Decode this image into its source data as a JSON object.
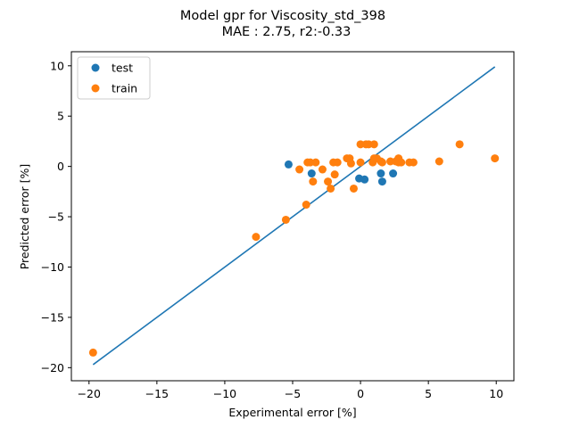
{
  "chart_data": {
    "type": "scatter",
    "title": "Model gpr for Viscosity_std_398",
    "subtitle": "MAE :  2.75, r2:-0.33",
    "xlabel": "Experimental error [%]",
    "ylabel": "Predicted error [%]",
    "xlim": [
      -21.3,
      11.3
    ],
    "ylim": [
      -21.3,
      11.4
    ],
    "xticks": [
      -20,
      -15,
      -10,
      -5,
      0,
      5,
      10
    ],
    "xtick_labels": [
      "−20",
      "−15",
      "−10",
      "−5",
      "0",
      "5",
      "10"
    ],
    "yticks": [
      -20,
      -15,
      -10,
      -5,
      0,
      5,
      10
    ],
    "ytick_labels": [
      "−20",
      "−15",
      "−10",
      "−5",
      "0",
      "5",
      "10"
    ],
    "grid": false,
    "legend_position": "top-left",
    "series": [
      {
        "name": "test",
        "kind": "scatter",
        "color": "#1f77b4",
        "points": [
          [
            -5.3,
            0.2
          ],
          [
            -3.6,
            -0.7
          ],
          [
            -0.1,
            -1.2
          ],
          [
            0.3,
            -1.3
          ],
          [
            1.5,
            -0.7
          ],
          [
            1.6,
            -1.5
          ],
          [
            2.4,
            -0.7
          ]
        ]
      },
      {
        "name": "train",
        "kind": "scatter",
        "color": "#ff7f0e",
        "points": [
          [
            -19.7,
            -18.5
          ],
          [
            -7.7,
            -7.0
          ],
          [
            -5.5,
            -5.3
          ],
          [
            -4.5,
            -0.3
          ],
          [
            -4.0,
            -3.8
          ],
          [
            -3.9,
            0.4
          ],
          [
            -3.7,
            0.4
          ],
          [
            -3.5,
            -1.5
          ],
          [
            -3.3,
            0.4
          ],
          [
            -2.8,
            -0.3
          ],
          [
            -2.4,
            -1.5
          ],
          [
            -2.2,
            -2.2
          ],
          [
            -2.0,
            0.4
          ],
          [
            -1.9,
            -0.8
          ],
          [
            -1.7,
            0.4
          ],
          [
            -1.0,
            0.8
          ],
          [
            -0.8,
            0.8
          ],
          [
            -0.7,
            0.3
          ],
          [
            -0.5,
            -2.2
          ],
          [
            0.0,
            0.4
          ],
          [
            0.0,
            2.2
          ],
          [
            0.4,
            2.2
          ],
          [
            0.6,
            2.2
          ],
          [
            0.9,
            0.4
          ],
          [
            1.0,
            0.8
          ],
          [
            1.0,
            2.2
          ],
          [
            1.2,
            0.8
          ],
          [
            1.5,
            0.5
          ],
          [
            1.6,
            0.4
          ],
          [
            2.2,
            0.5
          ],
          [
            2.6,
            0.5
          ],
          [
            2.8,
            0.4
          ],
          [
            2.8,
            0.8
          ],
          [
            3.0,
            0.4
          ],
          [
            3.6,
            0.4
          ],
          [
            3.9,
            0.4
          ],
          [
            5.8,
            0.5
          ],
          [
            7.3,
            2.2
          ],
          [
            9.9,
            0.8
          ]
        ]
      },
      {
        "name": "",
        "kind": "line",
        "color": "#1f77b4",
        "points": [
          [
            -19.7,
            -19.7
          ],
          [
            9.9,
            9.9
          ]
        ]
      }
    ]
  }
}
